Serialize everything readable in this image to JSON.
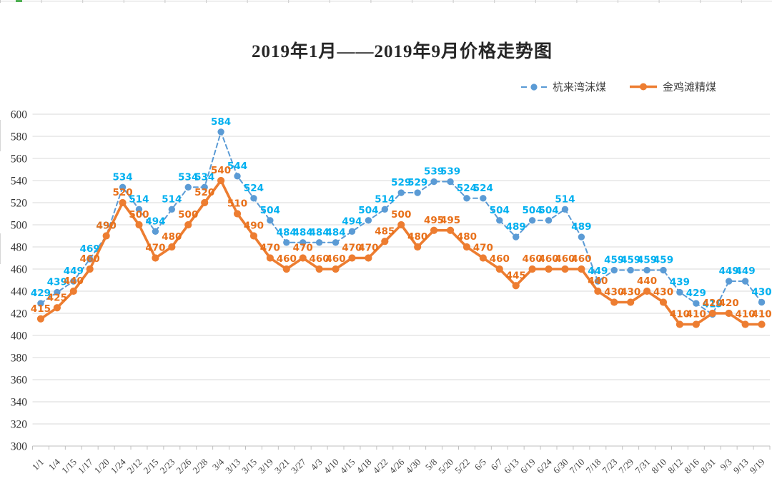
{
  "page": {
    "title": "2019年1月——2019年9月价格走势图"
  },
  "legend": [
    {
      "label": "杭来湾沫煤"
    },
    {
      "label": "金鸡滩精煤"
    }
  ],
  "colors": {
    "series_blue": "#5B9BD5",
    "series_blue_label": "#00B0F0",
    "series_orange": "#ED7D31",
    "series_orange_label": "#E8701A",
    "gridline": "#D9D9D9",
    "axis_line": "#BFBFBF",
    "axis_text": "#404040",
    "title_text": "#262626",
    "sheet_marker_green": "#4CAF50",
    "sheet_edge": "#D6D6D6"
  },
  "chart_data": {
    "type": "line",
    "title": "2019年1月——2019年9月价格走势图",
    "xlabel": "",
    "ylabel": "",
    "ylim": [
      300,
      600
    ],
    "ytick_step": 20,
    "grid": true,
    "legend_position": "top-right",
    "data_labels": true,
    "categories": [
      "1/1",
      "1/4",
      "1/15",
      "1/17",
      "1/20",
      "1/24",
      "2/12",
      "2/15",
      "2/23",
      "2/26",
      "2/28",
      "3/4",
      "3/13",
      "3/15",
      "3/19",
      "3/21",
      "3/27",
      "4/3",
      "4/10",
      "4/15",
      "4/18",
      "4/22",
      "4/26",
      "4/30",
      "5/8",
      "5/20",
      "5/22",
      "6/5",
      "6/7",
      "6/13",
      "6/19",
      "6/24",
      "6/30",
      "7/10",
      "7/18",
      "7/23",
      "7/29",
      "7/31",
      "8/10",
      "8/12",
      "8/16",
      "8/31",
      "9/3",
      "9/13",
      "9/19"
    ],
    "series": [
      {
        "id": "hanglaiwan",
        "name": "杭来湾沫煤",
        "style": "dashed",
        "color": "#5B9BD5",
        "label_color": "#00B0F0",
        "values": [
          429,
          439,
          449,
          469,
          490,
          534,
          514,
          494,
          514,
          534,
          534,
          584,
          544,
          524,
          504,
          484,
          484,
          484,
          484,
          494,
          504,
          514,
          529,
          529,
          539,
          539,
          524,
          524,
          504,
          489,
          504,
          504,
          514,
          489,
          449,
          459,
          459,
          459,
          459,
          439,
          429,
          419,
          449,
          449,
          430
        ]
      },
      {
        "id": "jinjitan",
        "name": "金鸡滩精煤",
        "style": "solid",
        "color": "#ED7D31",
        "label_color": "#E8701A",
        "values": [
          415,
          425,
          440,
          460,
          490,
          520,
          500,
          470,
          480,
          500,
          520,
          540,
          510,
          490,
          470,
          460,
          470,
          460,
          460,
          470,
          470,
          485,
          500,
          480,
          495,
          495,
          480,
          470,
          460,
          445,
          460,
          460,
          460,
          460,
          440,
          430,
          430,
          440,
          430,
          410,
          410,
          420,
          420,
          410,
          410
        ]
      }
    ]
  }
}
